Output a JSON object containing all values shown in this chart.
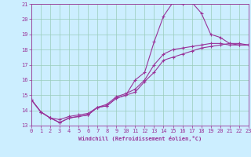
{
  "xlabel": "Windchill (Refroidissement éolien,°C)",
  "bg_color": "#cceeff",
  "grid_color": "#99ccbb",
  "line_color": "#993399",
  "xmin": 0,
  "xmax": 23,
  "ymin": 13,
  "ymax": 21,
  "series1_x": [
    0,
    1,
    2,
    3,
    4,
    5,
    6,
    7,
    8,
    9,
    10,
    11,
    12,
    13,
    14,
    15,
    16,
    17,
    18,
    19,
    20,
    21,
    22,
    23
  ],
  "series1_y": [
    14.7,
    13.9,
    13.5,
    13.2,
    13.5,
    13.6,
    13.7,
    14.2,
    14.3,
    14.8,
    15.0,
    16.0,
    16.5,
    18.5,
    20.2,
    21.1,
    21.0,
    21.1,
    20.4,
    19.0,
    18.8,
    18.4,
    18.4,
    18.3
  ],
  "series2_x": [
    0,
    1,
    2,
    3,
    4,
    5,
    6,
    7,
    8,
    9,
    10,
    11,
    12,
    13,
    14,
    15,
    16,
    17,
    18,
    19,
    20,
    21,
    22,
    23
  ],
  "series2_y": [
    14.7,
    13.9,
    13.5,
    13.4,
    13.6,
    13.7,
    13.8,
    14.2,
    14.4,
    14.9,
    15.1,
    15.4,
    16.0,
    17.0,
    17.7,
    18.0,
    18.1,
    18.2,
    18.3,
    18.4,
    18.4,
    18.3,
    18.3,
    18.3
  ],
  "series3_x": [
    0,
    1,
    2,
    3,
    4,
    5,
    6,
    7,
    8,
    9,
    10,
    11,
    12,
    13,
    14,
    15,
    16,
    17,
    18,
    19,
    20,
    21,
    22,
    23
  ],
  "series3_y": [
    14.7,
    13.9,
    13.5,
    13.2,
    13.5,
    13.6,
    13.7,
    14.2,
    14.3,
    14.8,
    15.0,
    15.2,
    15.9,
    16.5,
    17.3,
    17.5,
    17.7,
    17.9,
    18.1,
    18.2,
    18.3,
    18.4,
    18.3,
    18.3
  ],
  "label_fontsize": 5.0,
  "tick_fontsize": 5.0
}
